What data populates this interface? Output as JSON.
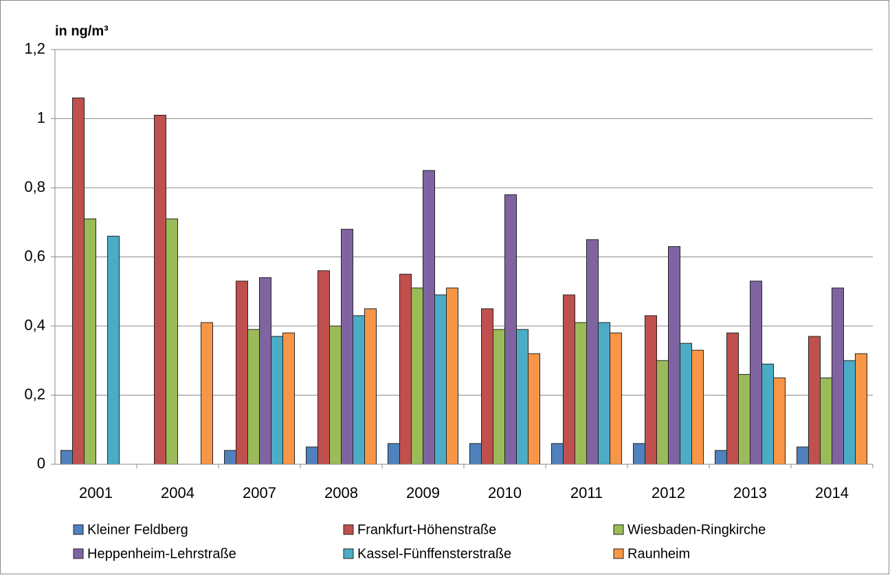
{
  "chart_data": {
    "type": "bar",
    "title": "in ng/m³",
    "categories": [
      "2001",
      "2004",
      "2007",
      "2008",
      "2009",
      "2010",
      "2011",
      "2012",
      "2013",
      "2014"
    ],
    "series": [
      {
        "name": "Kleiner Feldberg",
        "color": "#4f81bd",
        "values": [
          0.04,
          null,
          0.04,
          0.05,
          0.06,
          0.06,
          0.06,
          0.06,
          0.04,
          0.05
        ]
      },
      {
        "name": "Frankfurt-Höhenstraße",
        "color": "#c0504d",
        "values": [
          1.06,
          1.01,
          0.53,
          0.56,
          0.55,
          0.45,
          0.49,
          0.43,
          0.38,
          0.37
        ]
      },
      {
        "name": "Wiesbaden-Ringkirche",
        "color": "#9bbb59",
        "values": [
          0.71,
          0.71,
          0.39,
          0.4,
          0.51,
          0.39,
          0.41,
          0.3,
          0.26,
          0.25
        ]
      },
      {
        "name": "Heppenheim-Lehrstraße",
        "color": "#8064a2",
        "values": [
          null,
          null,
          0.54,
          0.68,
          0.85,
          0.78,
          0.65,
          0.63,
          0.53,
          0.51
        ]
      },
      {
        "name": "Kassel-Fünffensterstraße",
        "color": "#4bacc6",
        "values": [
          0.66,
          null,
          0.37,
          0.43,
          0.49,
          0.39,
          0.41,
          0.35,
          0.29,
          0.3
        ]
      },
      {
        "name": "Raunheim",
        "color": "#f79646",
        "values": [
          null,
          0.41,
          0.38,
          0.45,
          0.51,
          0.32,
          0.38,
          0.33,
          0.25,
          0.32
        ]
      }
    ],
    "ylim": [
      0,
      1.2
    ],
    "yticks": [
      0,
      {
        "value": 0.2,
        "label": "0,2"
      },
      {
        "value": 0.4,
        "label": "0,4"
      },
      {
        "value": 0.6,
        "label": "0,6"
      },
      {
        "value": 0.8,
        "label": "0,8"
      },
      1,
      {
        "value": 1.2,
        "label": "1,2"
      }
    ],
    "grid": true
  }
}
